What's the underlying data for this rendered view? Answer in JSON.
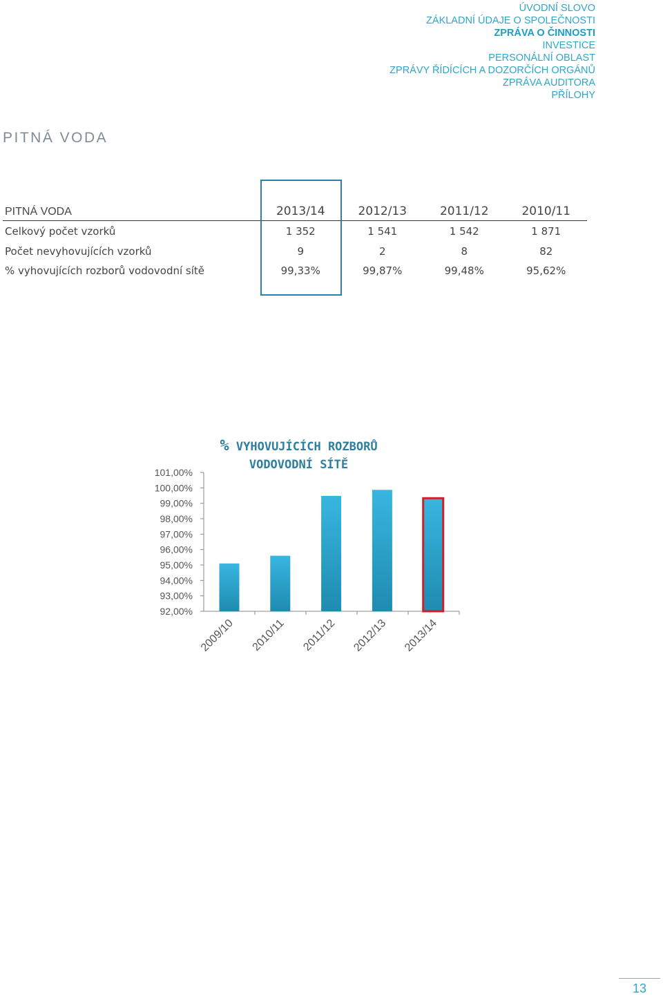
{
  "nav": {
    "items": [
      {
        "label": "ÚVODNÍ SLOVO",
        "active": false
      },
      {
        "label": "ZÁKLADNÍ ÚDAJE O SPOLEČNOSTI",
        "active": false
      },
      {
        "label": "ZPRÁVA O ČINNOSTI",
        "active": true
      },
      {
        "label": "INVESTICE",
        "active": false
      },
      {
        "label": "PERSONÁLNÍ OBLAST",
        "active": false
      },
      {
        "label": "ZPRÁVY ŘÍDÍCÍCH A DOZORČÍCH ORGÁNŮ",
        "active": false
      },
      {
        "label": "ZPRÁVA AUDITORA",
        "active": false
      },
      {
        "label": "PŘÍLOHY",
        "active": false
      }
    ]
  },
  "section_title": "PITNÁ VODA",
  "table": {
    "header_label": "PITNÁ VODA",
    "years": [
      "2013/14",
      "2012/13",
      "2011/12",
      "2010/11"
    ],
    "rows": [
      {
        "label": "Celkový počet vzorků",
        "values": [
          "1 352",
          "1 541",
          "1 542",
          "1 871"
        ]
      },
      {
        "label": "Počet nevyhovujících vzorků",
        "values": [
          "9",
          "2",
          "8",
          "82"
        ]
      },
      {
        "label": "% vyhovujících rozborů vodovodní sítě",
        "values": [
          "99,33%",
          "99,87%",
          "99,48%",
          "95,62%"
        ]
      }
    ]
  },
  "chart_data": {
    "type": "bar",
    "title_prefix": "%",
    "title_line1": "VYHOVUJÍCÍCH ROZBORŮ",
    "title_line2": "VODOVODNÍ SÍTĚ",
    "categories": [
      "2009/10",
      "2010/11",
      "2011/12",
      "2012/13",
      "2013/14"
    ],
    "values": [
      95.1,
      95.6,
      99.48,
      99.87,
      99.33
    ],
    "highlight_category": "2013/14",
    "highlight_color": "#d0202a",
    "bar_color": "#2aa3cf",
    "ylim": [
      92,
      101
    ],
    "yticks": [
      92,
      93,
      94,
      95,
      96,
      97,
      98,
      99,
      100,
      101
    ],
    "ytick_labels": [
      "92,00%",
      "93,00%",
      "94,00%",
      "95,00%",
      "96,00%",
      "97,00%",
      "98,00%",
      "99,00%",
      "100,00%",
      "101,00%"
    ],
    "xlabel": "",
    "ylabel": "",
    "grid": false,
    "legend": "none"
  },
  "page_number": "13"
}
